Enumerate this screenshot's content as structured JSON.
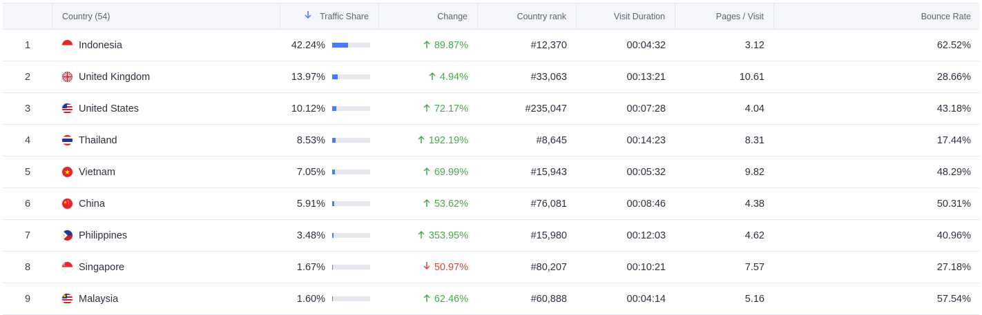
{
  "header": {
    "country": "Country (54)",
    "traffic_share": "Traffic Share",
    "change": "Change",
    "country_rank": "Country rank",
    "visit_duration": "Visit Duration",
    "pages_per_visit": "Pages / Visit",
    "bounce_rate": "Bounce Rate",
    "sort_icon": "arrow-down-icon"
  },
  "colors": {
    "accent": "#4a7cf6",
    "up": "#4aa84f",
    "down": "#e0413b",
    "bar_track": "#e6e8ee"
  },
  "rows": [
    {
      "num": "1",
      "country": "Indonesia",
      "flag": "flag-indonesia",
      "share": "42.24%",
      "share_fraction": 0.4224,
      "change": "89.87%",
      "direction": "up",
      "rank": "#12,370",
      "duration": "00:04:32",
      "pages": "3.12",
      "bounce": "62.52%"
    },
    {
      "num": "2",
      "country": "United Kingdom",
      "flag": "flag-uk",
      "share": "13.97%",
      "share_fraction": 0.1397,
      "change": "4.94%",
      "direction": "up",
      "rank": "#33,063",
      "duration": "00:13:21",
      "pages": "10.61",
      "bounce": "28.66%"
    },
    {
      "num": "3",
      "country": "United States",
      "flag": "flag-usa",
      "share": "10.12%",
      "share_fraction": 0.1012,
      "change": "72.17%",
      "direction": "up",
      "rank": "#235,047",
      "duration": "00:07:28",
      "pages": "4.04",
      "bounce": "43.18%"
    },
    {
      "num": "4",
      "country": "Thailand",
      "flag": "flag-thailand",
      "share": "8.53%",
      "share_fraction": 0.0853,
      "change": "192.19%",
      "direction": "up",
      "rank": "#8,645",
      "duration": "00:14:23",
      "pages": "8.31",
      "bounce": "17.44%"
    },
    {
      "num": "5",
      "country": "Vietnam",
      "flag": "flag-vietnam",
      "share": "7.05%",
      "share_fraction": 0.0705,
      "change": "69.99%",
      "direction": "up",
      "rank": "#15,943",
      "duration": "00:05:32",
      "pages": "9.82",
      "bounce": "48.29%"
    },
    {
      "num": "6",
      "country": "China",
      "flag": "flag-china",
      "share": "5.91%",
      "share_fraction": 0.0591,
      "change": "53.62%",
      "direction": "up",
      "rank": "#76,081",
      "duration": "00:08:46",
      "pages": "4.38",
      "bounce": "50.31%"
    },
    {
      "num": "7",
      "country": "Philippines",
      "flag": "flag-philippines",
      "share": "3.48%",
      "share_fraction": 0.0348,
      "change": "353.95%",
      "direction": "up",
      "rank": "#15,980",
      "duration": "00:12:03",
      "pages": "4.62",
      "bounce": "40.96%"
    },
    {
      "num": "8",
      "country": "Singapore",
      "flag": "flag-singapore",
      "share": "1.67%",
      "share_fraction": 0.0167,
      "change": "50.97%",
      "direction": "down",
      "rank": "#80,207",
      "duration": "00:10:21",
      "pages": "7.57",
      "bounce": "27.18%"
    },
    {
      "num": "9",
      "country": "Malaysia",
      "flag": "flag-malaysia",
      "share": "1.60%",
      "share_fraction": 0.016,
      "change": "62.46%",
      "direction": "up",
      "rank": "#60,888",
      "duration": "00:04:14",
      "pages": "5.16",
      "bounce": "57.54%"
    }
  ]
}
